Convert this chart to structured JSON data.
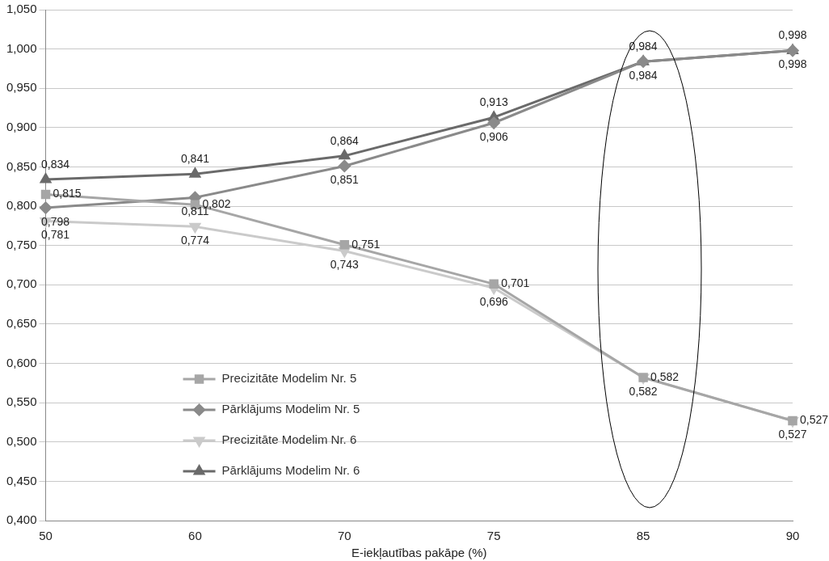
{
  "chart_data": {
    "type": "line",
    "xlabel": "E-iekļautības pakāpe (%)",
    "categories": [
      "50",
      "60",
      "70",
      "75",
      "85",
      "90"
    ],
    "series": [
      {
        "name": "Precizitāte Modelim Nr. 5",
        "color": "#a6a6a6",
        "marker": "square",
        "values": [
          0.815,
          0.802,
          0.751,
          0.701,
          0.582,
          0.527
        ],
        "value_labels": [
          "0,815",
          "0,802",
          "0,751",
          "0,701",
          "0,582",
          "0,527"
        ]
      },
      {
        "name": "Pārklājums Modelim Nr. 5",
        "color": "#8a8a8a",
        "marker": "diamond",
        "values": [
          0.798,
          0.811,
          0.851,
          0.906,
          0.984,
          0.998
        ],
        "value_labels": [
          "0,798",
          "0,811",
          "0,851",
          "0,906",
          "0,984",
          "0,998"
        ]
      },
      {
        "name": "Precizitāte Modelim Nr. 6",
        "color": "#cacaca",
        "marker": "triangle-down",
        "values": [
          0.781,
          0.774,
          0.743,
          0.696,
          0.582,
          0.527
        ],
        "value_labels": [
          "0,781",
          "0,774",
          "0,743",
          "0,696",
          "0,582",
          "0,527"
        ]
      },
      {
        "name": "Pārklājums Modelim Nr. 6",
        "color": "#6a6a6a",
        "marker": "triangle",
        "values": [
          0.834,
          0.841,
          0.864,
          0.913,
          0.984,
          0.998
        ],
        "value_labels": [
          "0,834",
          "0,841",
          "0,864",
          "0,913",
          "0,984",
          "0,998"
        ]
      }
    ],
    "ylim": [
      0.4,
      1.05
    ],
    "yticks": [
      {
        "value": 0.4,
        "label": "0,400"
      },
      {
        "value": 0.45,
        "label": "0,450"
      },
      {
        "value": 0.5,
        "label": "0,500"
      },
      {
        "value": 0.55,
        "label": "0,550"
      },
      {
        "value": 0.6,
        "label": "0,600"
      },
      {
        "value": 0.65,
        "label": "0,650"
      },
      {
        "value": 0.7,
        "label": "0,700"
      },
      {
        "value": 0.75,
        "label": "0,750"
      },
      {
        "value": 0.8,
        "label": "0,800"
      },
      {
        "value": 0.85,
        "label": "0,850"
      },
      {
        "value": 0.9,
        "label": "0,900"
      },
      {
        "value": 0.95,
        "label": "0,950"
      },
      {
        "value": 1.0,
        "label": "1,000"
      },
      {
        "value": 1.05,
        "label": "1,050"
      }
    ],
    "grid": "y",
    "legend": "bottom left",
    "line_style": "solid"
  }
}
